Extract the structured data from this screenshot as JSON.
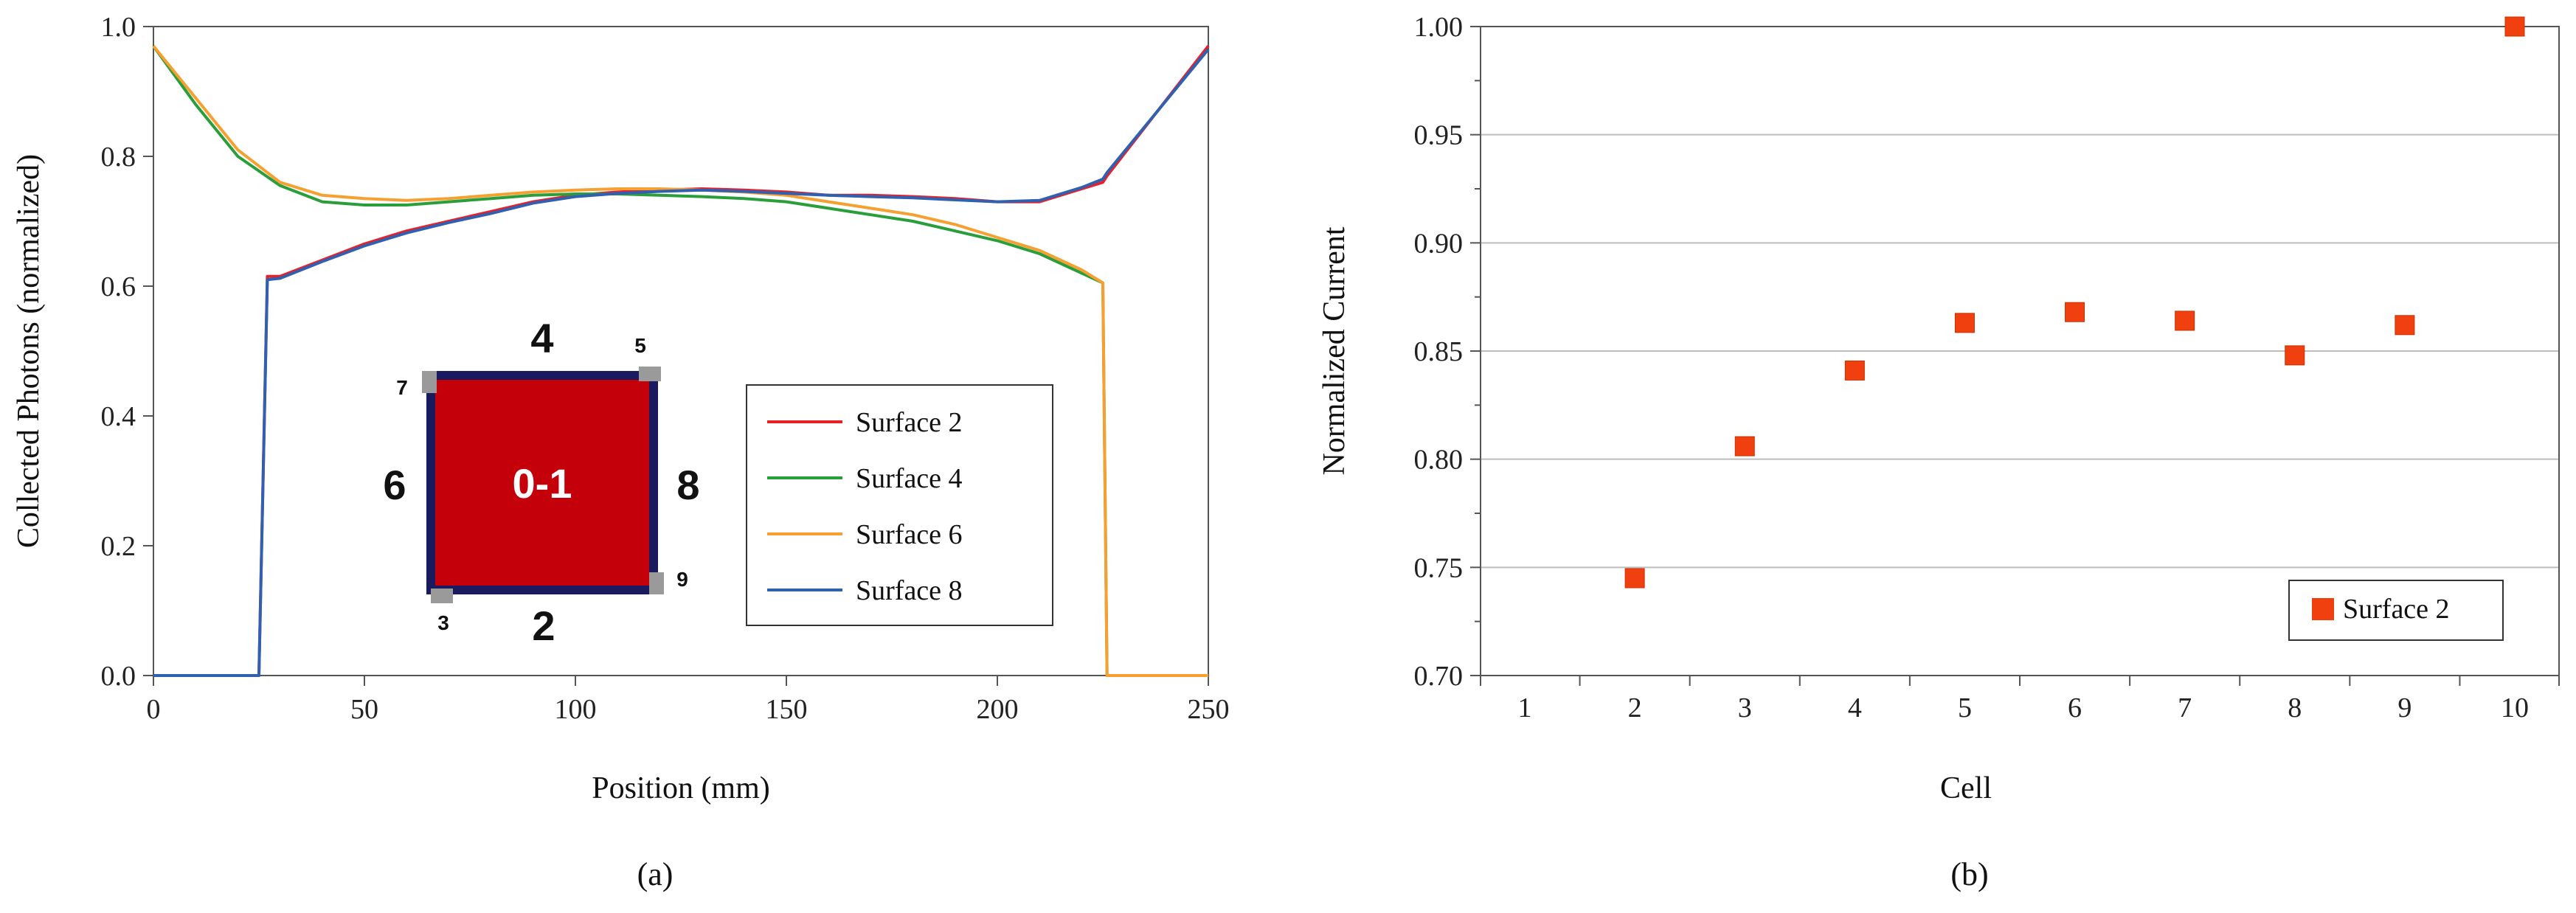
{
  "chart_data": [
    {
      "type": "line",
      "xlabel": "Position (mm)",
      "ylabel": "Collected Photons (normalized)",
      "panel_label": "(a)",
      "xlim": [
        0,
        250
      ],
      "ylim": [
        0,
        1.0
      ],
      "x_ticks": [
        "0",
        "50",
        "100",
        "150",
        "200",
        "250"
      ],
      "y_ticks": [
        "0.0",
        "0.2",
        "0.4",
        "0.6",
        "0.8",
        "1.0"
      ],
      "legend": [
        "Surface 2",
        "Surface 4",
        "Surface 6",
        "Surface 8"
      ],
      "series": [
        {
          "name": "Surface 2",
          "color": "#e8202a",
          "x": [
            0,
            25,
            27,
            30,
            40,
            50,
            60,
            70,
            80,
            90,
            100,
            110,
            120,
            130,
            140,
            150,
            160,
            170,
            180,
            190,
            200,
            210,
            220,
            225,
            226,
            250
          ],
          "y": [
            0,
            0,
            0.615,
            0.615,
            0.64,
            0.665,
            0.685,
            0.7,
            0.715,
            0.73,
            0.74,
            0.745,
            0.748,
            0.75,
            0.748,
            0.745,
            0.74,
            0.74,
            0.738,
            0.735,
            0.73,
            0.73,
            0.75,
            0.76,
            0.77,
            0.97
          ]
        },
        {
          "name": "Surface 4",
          "color": "#2a9e3a",
          "x": [
            0,
            10,
            20,
            30,
            40,
            50,
            60,
            70,
            80,
            90,
            100,
            110,
            120,
            130,
            140,
            150,
            160,
            170,
            180,
            190,
            200,
            210,
            220,
            225,
            226,
            250
          ],
          "y": [
            0.97,
            0.88,
            0.8,
            0.755,
            0.73,
            0.725,
            0.725,
            0.73,
            0.735,
            0.74,
            0.742,
            0.742,
            0.74,
            0.738,
            0.735,
            0.73,
            0.72,
            0.71,
            0.7,
            0.685,
            0.67,
            0.65,
            0.62,
            0.605,
            0,
            0
          ]
        },
        {
          "name": "Surface 6",
          "color": "#f5a030",
          "x": [
            0,
            10,
            20,
            30,
            40,
            50,
            60,
            70,
            80,
            90,
            100,
            110,
            120,
            130,
            140,
            150,
            160,
            170,
            180,
            190,
            200,
            210,
            220,
            225,
            226,
            250
          ],
          "y": [
            0.97,
            0.89,
            0.81,
            0.76,
            0.74,
            0.735,
            0.732,
            0.735,
            0.74,
            0.745,
            0.748,
            0.75,
            0.75,
            0.748,
            0.745,
            0.74,
            0.73,
            0.72,
            0.71,
            0.695,
            0.675,
            0.655,
            0.625,
            0.605,
            0,
            0
          ]
        },
        {
          "name": "Surface 8",
          "color": "#3060b0",
          "x": [
            0,
            25,
            27,
            30,
            40,
            50,
            60,
            70,
            80,
            90,
            100,
            110,
            120,
            130,
            140,
            150,
            160,
            170,
            180,
            190,
            200,
            210,
            220,
            225,
            226,
            250
          ],
          "y": [
            0,
            0,
            0.61,
            0.612,
            0.638,
            0.662,
            0.682,
            0.698,
            0.712,
            0.728,
            0.738,
            0.743,
            0.746,
            0.748,
            0.746,
            0.743,
            0.74,
            0.738,
            0.736,
            0.733,
            0.73,
            0.732,
            0.752,
            0.765,
            0.775,
            0.965
          ]
        }
      ],
      "inset": {
        "center_label": "0-1",
        "top": "4",
        "bottom": "2",
        "left": "6",
        "right": "8",
        "corner_tr": "5",
        "corner_tl": "7",
        "corner_bl": "3",
        "corner_br": "9"
      }
    },
    {
      "type": "scatter",
      "xlabel": "Cell",
      "ylabel": "Normalized Current",
      "panel_label": "(b)",
      "ylim": [
        0.7,
        1.0
      ],
      "x_ticks": [
        "1",
        "2",
        "3",
        "4",
        "5",
        "6",
        "7",
        "8",
        "9",
        "10"
      ],
      "y_ticks": [
        "0.70",
        "0.75",
        "0.80",
        "0.85",
        "0.90",
        "0.95",
        "1.00"
      ],
      "legend": [
        "Surface 2"
      ],
      "series": [
        {
          "name": "Surface 2",
          "color": "#f04010",
          "x": [
            2,
            3,
            4,
            5,
            6,
            7,
            8,
            9,
            10
          ],
          "y": [
            0.745,
            0.806,
            0.841,
            0.863,
            0.868,
            0.864,
            0.848,
            0.862,
            1.0
          ]
        }
      ]
    }
  ]
}
